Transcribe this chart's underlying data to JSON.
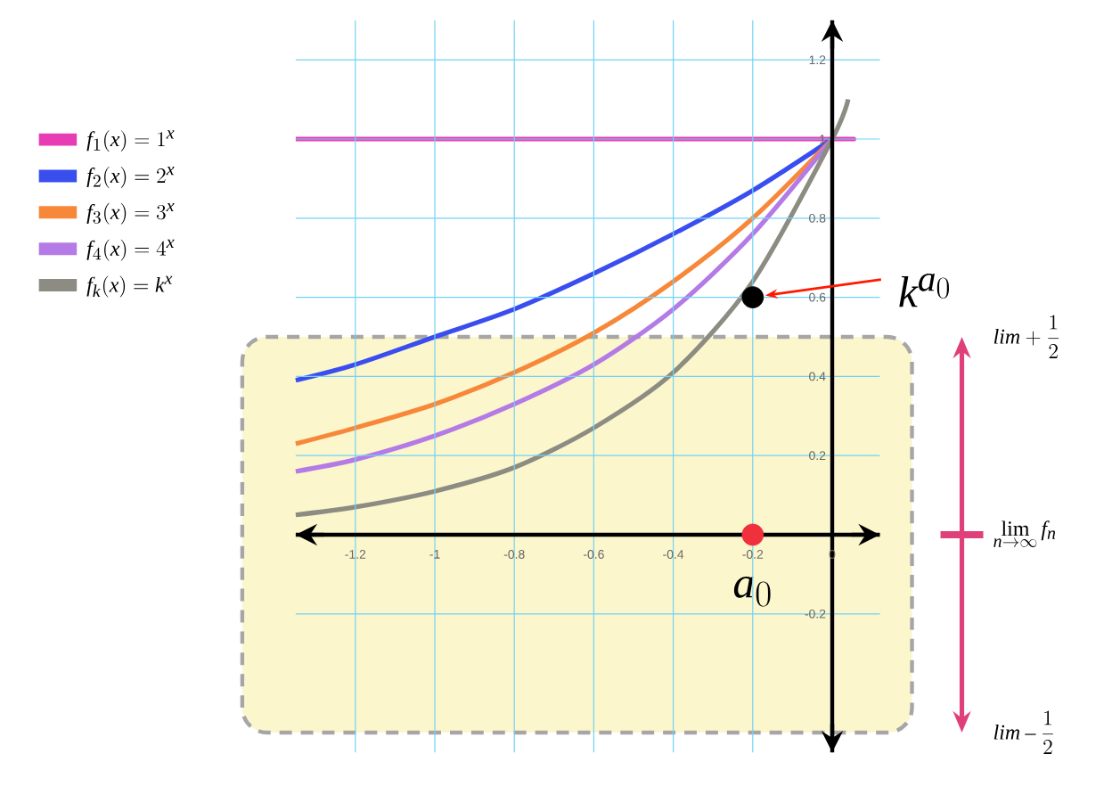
{
  "chart_data": {
    "type": "line",
    "xlim": [
      -1.35,
      0.12
    ],
    "ylim": [
      -0.55,
      1.3
    ],
    "xticks": [
      -1.2,
      -1,
      -0.8,
      -0.6,
      -0.4,
      -0.2,
      0
    ],
    "yticks": [
      -0.2,
      0.2,
      0.4,
      0.6,
      0.8,
      1,
      1.2
    ],
    "grid": true,
    "legend": "top left",
    "series": [
      {
        "name": "f_1(x) = 1^x",
        "color": "#e83cb4",
        "x": [
          -1.35,
          -1,
          -0.5,
          0,
          0.05
        ],
        "values": [
          1,
          1,
          1,
          1,
          1
        ]
      },
      {
        "name": "f_2(x) = 2^x",
        "color": "#3a4ef0",
        "x": [
          -1.35,
          -1.2,
          -1,
          -0.8,
          -0.6,
          -0.4,
          -0.2,
          0
        ],
        "values": [
          0.39,
          0.43,
          0.5,
          0.57,
          0.66,
          0.76,
          0.87,
          1
        ]
      },
      {
        "name": "f_3(x) = 3^x",
        "color": "#f7883a",
        "x": [
          -1.35,
          -1.2,
          -1,
          -0.8,
          -0.6,
          -0.4,
          -0.2,
          0
        ],
        "values": [
          0.23,
          0.27,
          0.33,
          0.41,
          0.51,
          0.64,
          0.8,
          1
        ]
      },
      {
        "name": "f_4(x) = 4^x",
        "color": "#b47ae6",
        "x": [
          -1.35,
          -1.2,
          -1,
          -0.8,
          -0.6,
          -0.4,
          -0.2,
          0
        ],
        "values": [
          0.16,
          0.19,
          0.25,
          0.33,
          0.43,
          0.57,
          0.76,
          1
        ]
      },
      {
        "name": "f_k(x) = k^x",
        "color": "#8c8c82",
        "x": [
          -1.35,
          -1.2,
          -1,
          -0.8,
          -0.6,
          -0.4,
          -0.2,
          0,
          0.04
        ],
        "values": [
          0.05,
          0.07,
          0.11,
          0.17,
          0.27,
          0.41,
          0.64,
          1,
          1.1
        ]
      },
      {
        "type": "scatter",
        "marker": "circle",
        "color": "#000000",
        "x": [
          -0.2
        ],
        "values": [
          0.6
        ]
      },
      {
        "type": "scatter",
        "marker": "circle",
        "color": "#f0303c",
        "x": [
          -0.2
        ],
        "values": [
          0
        ]
      }
    ],
    "bands": [
      {
        "axis": "y",
        "from": -0.5,
        "to": 0.5,
        "color": "#fbf6cc"
      }
    ],
    "annotations": [
      "k^{a_0}",
      {
        "text": "a_0",
        "x": -0.2,
        "y": 0
      },
      "lim+\\frac{1}{2}",
      "\\lim_{n\\to\\infty} f_n",
      "lim-\\frac{1}{2}"
    ]
  }
}
